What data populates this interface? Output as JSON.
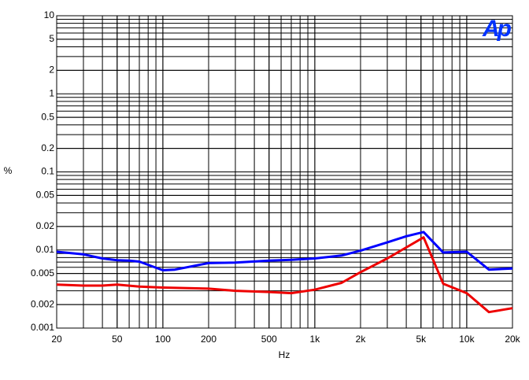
{
  "chart_data": {
    "type": "line",
    "logo": "Ap",
    "xlabel": "Hz",
    "ylabel": "%",
    "xscale": "log",
    "yscale": "log",
    "grid": true,
    "xlim": [
      20,
      20000
    ],
    "ylim": [
      0.001,
      10
    ],
    "xticks": [
      20,
      50,
      100,
      200,
      500,
      {
        "value": 1000,
        "label": "1k"
      },
      {
        "value": 2000,
        "label": "2k"
      },
      {
        "value": 5000,
        "label": "5k"
      },
      {
        "value": 10000,
        "label": "10k"
      },
      {
        "value": 20000,
        "label": "20k"
      }
    ],
    "yticks": [
      10,
      5,
      2,
      1,
      0.5,
      0.2,
      0.1,
      0.05,
      0.02,
      0.01,
      0.005,
      0.002,
      0.001
    ],
    "series": [
      {
        "color": "#0000ff",
        "x": [
          20,
          30,
          40,
          50,
          60,
          70,
          100,
          120,
          200,
          300,
          500,
          700,
          1000,
          1500,
          2000,
          3000,
          4000,
          5200,
          7000,
          10000,
          14000,
          20000
        ],
        "values": [
          0.0095,
          0.0088,
          0.0078,
          0.0074,
          0.0073,
          0.0071,
          0.0055,
          0.0056,
          0.0068,
          0.0069,
          0.0073,
          0.0075,
          0.0078,
          0.0085,
          0.0098,
          0.0125,
          0.015,
          0.017,
          0.0093,
          0.0095,
          0.0056,
          0.0058
        ]
      },
      {
        "color": "#ee0000",
        "x": [
          20,
          30,
          40,
          50,
          70,
          100,
          200,
          300,
          500,
          700,
          1000,
          1500,
          2000,
          3000,
          5200,
          7000,
          10000,
          14000,
          20000
        ],
        "values": [
          0.0036,
          0.0035,
          0.0035,
          0.0036,
          0.0034,
          0.0033,
          0.0032,
          0.003,
          0.0029,
          0.0028,
          0.0031,
          0.0038,
          0.0052,
          0.0078,
          0.0145,
          0.0037,
          0.0028,
          0.0016,
          0.0018
        ]
      }
    ]
  }
}
